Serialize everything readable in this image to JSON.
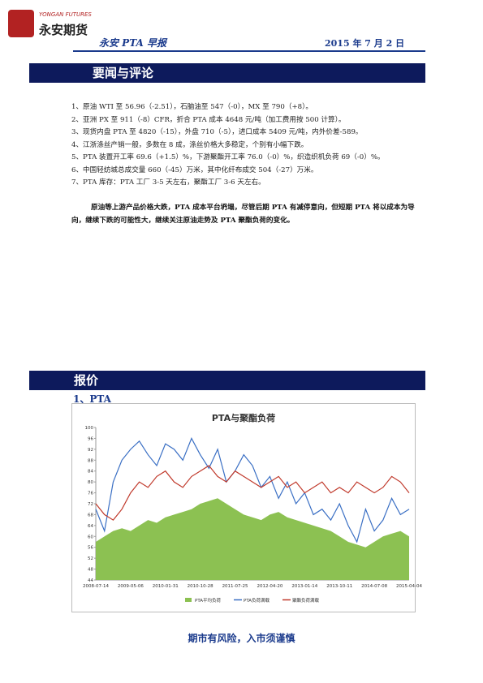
{
  "header": {
    "logo_en": "YONGAN FUTURES",
    "logo_cn": "永安期货",
    "title": "永安 PTA 早报",
    "date": "2015 年 7 月 2 日"
  },
  "news": {
    "heading": "要闻与评论",
    "items": [
      "1、原油 WTI 至 56.96（-2.51），石脑油至 547（-0），MX 至 790（+8）。",
      "2、亚洲 PX 至 911（-8）CFR，折合 PTA 成本 4648 元/吨（加工费用按 500 计算）。",
      "3、现货内盘 PTA 至 4820（-15），外盘 710（-5），进口成本 5409 元/吨，内外价差-589。",
      "4、江浙涤丝产销一般，多数在 8 成，涤丝价格大多稳定，个别有小幅下跌。",
      "5、PTA 装置开工率 69.6（+1.5）%，下游聚酯开工率 76.0（-0）%，织造织机负荷 69（-0）%。",
      "6、中国轻纺城总成交量 660（-45）万米，其中化纤布成交 504（-27）万米。",
      "7、PTA 库存：PTA 工厂 3-5 天左右，聚酯工厂 3-6 天左右。"
    ],
    "comment": "原油等上游产品价格大跌，PTA 成本平台坍塌，尽管后期 PTA 有减停意向，但短期 PTA 将以成本为导向，继续下跌的可能性大，继续关注原油走势及 PTA 聚酯负荷的变化。"
  },
  "quote": {
    "heading": "报价",
    "subheading": "1、PTA"
  },
  "chart_data": {
    "type": "line",
    "title": "PTA与聚酯负荷",
    "categories": [
      "2008-07-14",
      null,
      null,
      null,
      "2009-05-06",
      null,
      null,
      null,
      "2010-01-31",
      null,
      null,
      null,
      "2010-10-28",
      null,
      null,
      null,
      "2011-07-25",
      null,
      null,
      null,
      "2012-04-20",
      null,
      null,
      null,
      "2013-01-14",
      null,
      null,
      null,
      "2013-10-11",
      null,
      null,
      null,
      "2014-07-08",
      null,
      null,
      null,
      "2015-04-04"
    ],
    "ylim": [
      44,
      100
    ],
    "yticks": [
      44,
      48,
      52,
      56,
      60,
      64,
      68,
      72,
      76,
      80,
      84,
      88,
      92,
      96,
      100
    ],
    "series": [
      {
        "name": "PTA平均负荷",
        "color": "#8cc152",
        "area": true,
        "values": [
          58,
          60,
          62,
          63,
          62,
          64,
          66,
          65,
          67,
          68,
          69,
          70,
          72,
          73,
          74,
          72,
          70,
          68,
          67,
          66,
          68,
          69,
          67,
          66,
          65,
          64,
          63,
          62,
          60,
          58,
          57,
          56,
          58,
          60,
          61,
          62,
          60
        ]
      },
      {
        "name": "PTA负荷满载",
        "color": "#3a6fc4",
        "values": [
          70,
          62,
          80,
          88,
          92,
          95,
          90,
          86,
          94,
          92,
          88,
          96,
          90,
          85,
          92,
          80,
          84,
          90,
          86,
          78,
          82,
          74,
          80,
          72,
          76,
          68,
          70,
          66,
          72,
          64,
          58,
          70,
          62,
          66,
          74,
          68,
          70
        ]
      },
      {
        "name": "聚酯负荷满载",
        "color": "#c0392b",
        "values": [
          72,
          68,
          66,
          70,
          76,
          80,
          78,
          82,
          84,
          80,
          78,
          82,
          84,
          86,
          82,
          80,
          84,
          82,
          80,
          78,
          80,
          82,
          78,
          80,
          76,
          78,
          80,
          76,
          78,
          76,
          80,
          78,
          76,
          78,
          82,
          80,
          76
        ]
      }
    ]
  },
  "footer": "期市有风险，入市须谨慎"
}
